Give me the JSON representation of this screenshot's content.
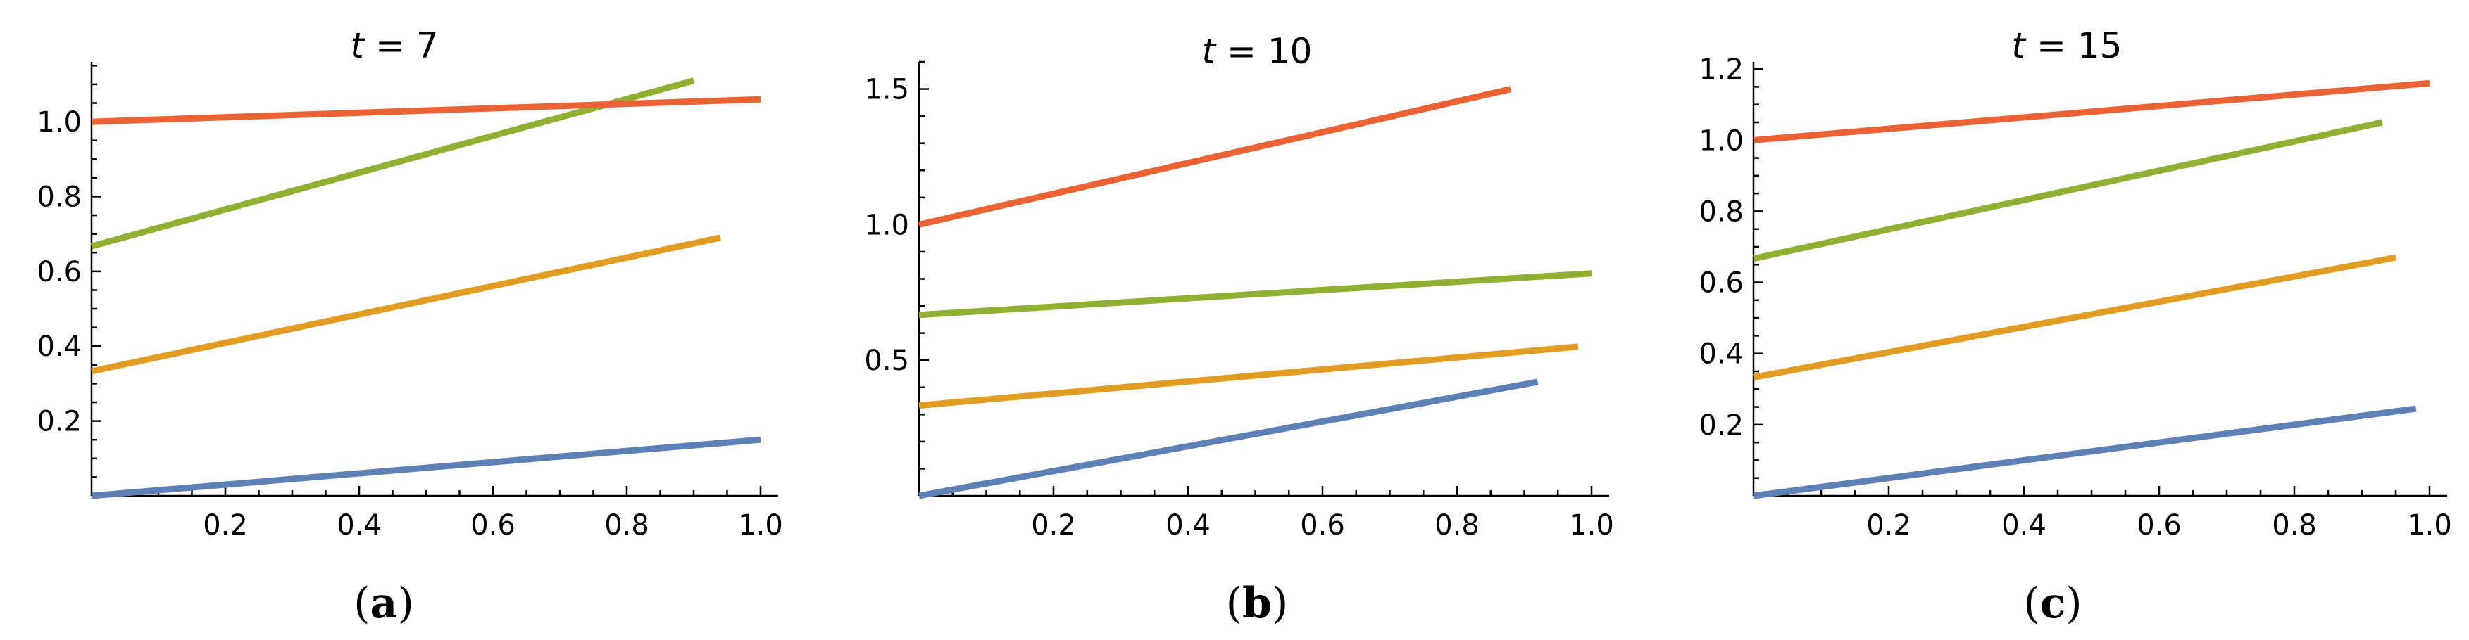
{
  "chart_data": [
    {
      "type": "line",
      "title_var": "t",
      "title_rest": " = 7",
      "caption_open": "(",
      "caption_letter": "a",
      "caption_close": ")",
      "xlim": [
        0,
        1.0
      ],
      "ylim": [
        0,
        1.16
      ],
      "xticks": [
        "0.2",
        "0.4",
        "0.6",
        "0.8",
        "1.0"
      ],
      "yticks": [
        "0.2",
        "0.4",
        "0.6",
        "0.8",
        "1.0"
      ],
      "series": [
        {
          "color": "#5e81b5",
          "x": [
            0,
            1.0
          ],
          "y": [
            0,
            0.15
          ]
        },
        {
          "color": "#e19c24",
          "x": [
            0,
            0.94
          ],
          "y": [
            0.333,
            0.69
          ]
        },
        {
          "color": "#8fb032",
          "x": [
            0,
            0.9
          ],
          "y": [
            0.667,
            1.11
          ]
        },
        {
          "color": "#eb6235",
          "x": [
            0,
            1.0
          ],
          "y": [
            1.0,
            1.06
          ]
        }
      ]
    },
    {
      "type": "line",
      "title_var": "t",
      "title_rest": " = 10",
      "caption_open": "(",
      "caption_letter": "b",
      "caption_close": ")",
      "xlim": [
        0,
        1.0
      ],
      "ylim": [
        0,
        1.6
      ],
      "xticks": [
        "0.2",
        "0.4",
        "0.6",
        "0.8",
        "1.0"
      ],
      "yticks": [
        "0.5",
        "1.0",
        "1.5"
      ],
      "series": [
        {
          "color": "#5e81b5",
          "x": [
            0,
            0.92
          ],
          "y": [
            0,
            0.42
          ]
        },
        {
          "color": "#e19c24",
          "x": [
            0,
            0.98
          ],
          "y": [
            0.333,
            0.55
          ]
        },
        {
          "color": "#8fb032",
          "x": [
            0,
            1.0
          ],
          "y": [
            0.667,
            0.82
          ]
        },
        {
          "color": "#eb6235",
          "x": [
            0,
            0.88
          ],
          "y": [
            1.0,
            1.5
          ]
        }
      ]
    },
    {
      "type": "line",
      "title_var": "t",
      "title_rest": " = 15",
      "caption_open": "(",
      "caption_letter": "c",
      "caption_close": ")",
      "xlim": [
        0,
        1.0
      ],
      "ylim": [
        0,
        1.22
      ],
      "xticks": [
        "0.2",
        "0.4",
        "0.6",
        "0.8",
        "1.0"
      ],
      "yticks": [
        "0.2",
        "0.4",
        "0.6",
        "0.8",
        "1.0",
        "1.2"
      ],
      "series": [
        {
          "color": "#5e81b5",
          "x": [
            0,
            0.98
          ],
          "y": [
            0,
            0.245
          ]
        },
        {
          "color": "#e19c24",
          "x": [
            0,
            0.95
          ],
          "y": [
            0.333,
            0.67
          ]
        },
        {
          "color": "#8fb032",
          "x": [
            0,
            0.93
          ],
          "y": [
            0.667,
            1.05
          ]
        },
        {
          "color": "#eb6235",
          "x": [
            0,
            1.0
          ],
          "y": [
            1.0,
            1.16
          ]
        }
      ]
    }
  ]
}
